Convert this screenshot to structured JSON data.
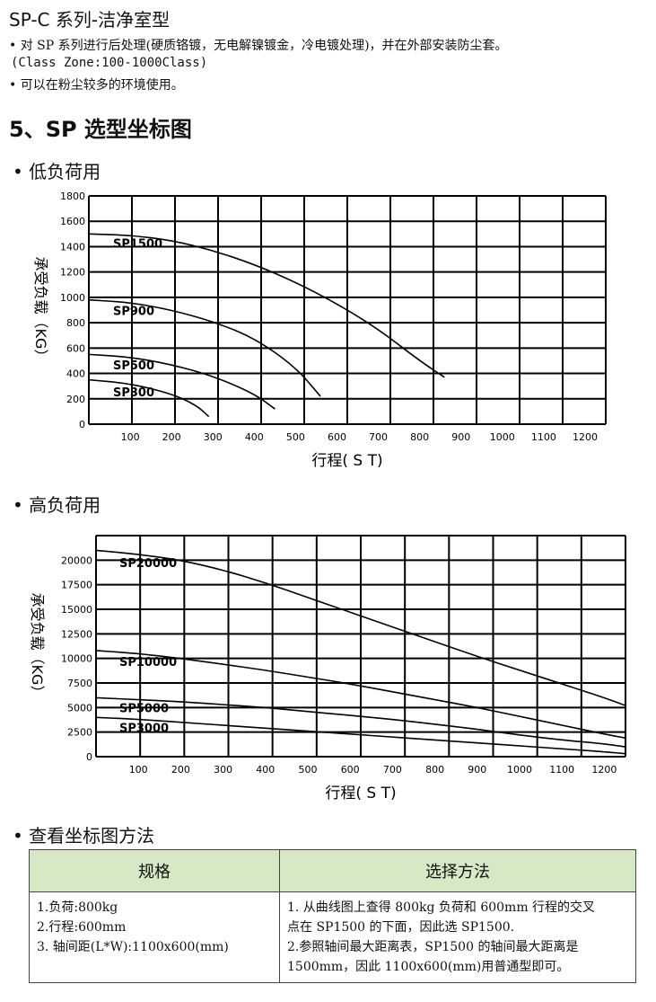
{
  "header": {
    "title": "SP-C 系列-洁净室型",
    "bullet1": "•  对 SP 系列进行后处理(硬质铬镀，无电解镍镀金，冷电镀处理)，并在外部安装防尘套。",
    "bullet1_cont": "(Class Zone:100-1000Class)",
    "bullet2": "•  可以在粉尘较多的环境使用。"
  },
  "section_title": "5、SP 选型坐标图",
  "low_load": {
    "heading": "• 低负荷用",
    "chart_data": {
      "type": "line",
      "xlabel": "行程( S  T)",
      "ylabel": "承受负载（KG）",
      "xlim": [
        0,
        1250
      ],
      "ylim": [
        0,
        1800
      ],
      "xticks": [
        "100",
        "200",
        "300",
        "400",
        "500",
        "600",
        "700",
        "800",
        "900",
        "1000",
        "1100",
        "1200"
      ],
      "yticks": [
        "0",
        "200",
        "400",
        "600",
        "800",
        "1000",
        "1200",
        "1400",
        "1600",
        "1800"
      ],
      "grid": true,
      "series": [
        {
          "name": "SP1500",
          "x": [
            0,
            100,
            200,
            300,
            400,
            500,
            600,
            700,
            800,
            860
          ],
          "y": [
            1500,
            1490,
            1450,
            1370,
            1260,
            1120,
            950,
            750,
            500,
            370
          ]
        },
        {
          "name": "SP900",
          "x": [
            0,
            100,
            200,
            300,
            400,
            500,
            560
          ],
          "y": [
            980,
            960,
            900,
            810,
            680,
            450,
            220
          ]
        },
        {
          "name": "SP500",
          "x": [
            0,
            100,
            200,
            300,
            400,
            450
          ],
          "y": [
            550,
            530,
            470,
            380,
            240,
            120
          ]
        },
        {
          "name": "SP300",
          "x": [
            0,
            100,
            200,
            260,
            290
          ],
          "y": [
            350,
            320,
            240,
            150,
            60
          ]
        }
      ]
    }
  },
  "high_load": {
    "heading": "• 高负荷用",
    "chart_data": {
      "type": "line",
      "xlabel": "行程( S  T)",
      "ylabel": "承受负载（KG）",
      "xlim": [
        0,
        1250
      ],
      "ylim": [
        0,
        22500
      ],
      "xticks": [
        "100",
        "200",
        "300",
        "400",
        "500",
        "600",
        "700",
        "800",
        "900",
        "1000",
        "1100",
        "1200"
      ],
      "yticks": [
        "0",
        "2500",
        "5000",
        "7500",
        "10000",
        "12500",
        "15000",
        "17500",
        "20000"
      ],
      "grid": true,
      "series": [
        {
          "name": "SP20000",
          "x": [
            0,
            100,
            200,
            300,
            400,
            500,
            600,
            700,
            800,
            900,
            1000,
            1100,
            1200,
            1250
          ],
          "y": [
            21000,
            20600,
            20000,
            19000,
            17700,
            16200,
            14700,
            13200,
            11700,
            10200,
            8800,
            7400,
            6000,
            5200
          ]
        },
        {
          "name": "SP10000",
          "x": [
            0,
            100,
            200,
            300,
            400,
            500,
            600,
            700,
            800,
            900,
            1000,
            1100,
            1200,
            1250
          ],
          "y": [
            10800,
            10500,
            10000,
            9400,
            8800,
            8100,
            7400,
            6600,
            5800,
            5000,
            4100,
            3200,
            2300,
            1900
          ]
        },
        {
          "name": "SP5000",
          "x": [
            0,
            100,
            200,
            300,
            400,
            500,
            600,
            700,
            800,
            900,
            1000,
            1100,
            1200,
            1250
          ],
          "y": [
            6000,
            5800,
            5600,
            5300,
            5000,
            4600,
            4200,
            3800,
            3300,
            2800,
            2200,
            1700,
            1300,
            1000
          ]
        },
        {
          "name": "SP3000",
          "x": [
            0,
            100,
            200,
            300,
            400,
            500,
            600,
            700,
            800,
            900,
            1000,
            1100,
            1200,
            1250
          ],
          "y": [
            4000,
            3800,
            3500,
            3200,
            2900,
            2600,
            2300,
            2000,
            1700,
            1400,
            1100,
            800,
            500,
            300
          ]
        }
      ]
    }
  },
  "method": {
    "heading": "• 查看坐标图方法",
    "col1_header": "规格",
    "col2_header": "选择方法",
    "col1_lines": [
      "1.负荷:800kg",
      "2.行程:600mm",
      "3.  轴间距(L*W):1100x600(mm)"
    ],
    "col2_lines": [
      "1.  从曲线图上查得 800kg 负荷和 600mm 行程的交叉",
      "点在 SP1500 的下面，因此选 SP1500.",
      "2.参照轴间最大距离表，SP1500 的轴间最大距离是",
      "1500mm，因此 1100x600(mm)用普通型即可。"
    ]
  }
}
